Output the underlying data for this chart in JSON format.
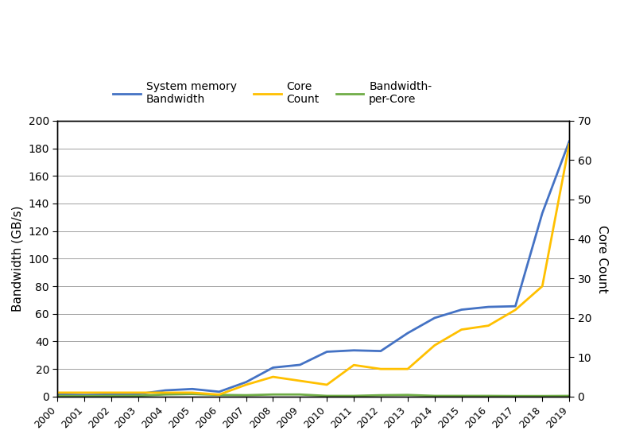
{
  "years": [
    2000,
    2001,
    2002,
    2003,
    2004,
    2005,
    2006,
    2007,
    2008,
    2009,
    2010,
    2011,
    2012,
    2013,
    2014,
    2015,
    2016,
    2017,
    2018,
    2019
  ],
  "system_memory_bandwidth": [
    1.5,
    1.2,
    1.5,
    1.8,
    4.5,
    5.5,
    3.5,
    10.5,
    21.0,
    23.0,
    32.5,
    33.5,
    33.0,
    46.0,
    57.0,
    63.0,
    65.0,
    65.5,
    133.0,
    185.0
  ],
  "core_count": [
    1,
    1,
    1,
    1,
    1,
    1,
    0.5,
    3,
    5,
    4,
    3,
    8,
    7,
    7,
    13,
    17,
    18,
    22,
    28,
    64
  ],
  "bandwidth_per_core": [
    0.5,
    0.4,
    0.5,
    0.6,
    1.5,
    1.8,
    1.2,
    1.0,
    1.5,
    1.5,
    0.5,
    0.5,
    1.0,
    1.2,
    0.5,
    0.5,
    0.5,
    0.4,
    0.4,
    0.5
  ],
  "bandwidth_color": "#4472C4",
  "core_count_color": "#FFC000",
  "bpc_color": "#70AD47",
  "left_ylabel": "Bandwidth (GB/s)",
  "right_ylabel": "Core Count",
  "left_ylim": [
    0,
    200
  ],
  "right_ylim": [
    0,
    70
  ],
  "left_yticks": [
    0,
    20,
    40,
    60,
    80,
    100,
    120,
    140,
    160,
    180,
    200
  ],
  "right_yticks": [
    0,
    10,
    20,
    30,
    40,
    50,
    60,
    70
  ],
  "legend_labels": [
    "System memory\nBandwidth",
    "Core\nCount",
    "Bandwidth-\nper-Core"
  ],
  "background_color": "#ffffff",
  "grid_color": "#a0a0a0",
  "border_color": "#000000"
}
